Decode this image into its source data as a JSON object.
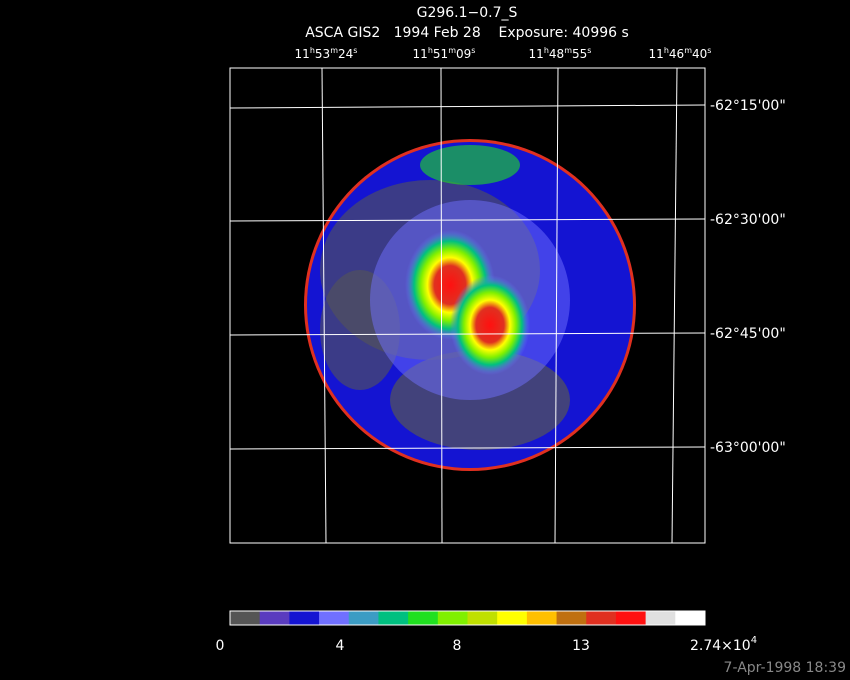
{
  "header": {
    "title": "G296.1−0.7_S",
    "subtitle": "ASCA GIS2   1994 Feb 28    Exposure: 40996 s"
  },
  "ra_labels": [
    [
      "11",
      "h",
      "53",
      "m",
      "24",
      "s"
    ],
    [
      "11",
      "h",
      "51",
      "m",
      "09",
      "s"
    ],
    [
      "11",
      "h",
      "48",
      "m",
      "55",
      "s"
    ],
    [
      "11",
      "h",
      "46",
      "m",
      "40",
      "s"
    ]
  ],
  "dec_labels": [
    "-62°15'00\"",
    "-62°30'00\"",
    "-62°45'00\"",
    "-63°00'00\""
  ],
  "colorbar": {
    "colors": [
      "#555555",
      "#5a3cbf",
      "#1414d2",
      "#7070ff",
      "#3c9cc4",
      "#00c080",
      "#20e020",
      "#80f000",
      "#c0e000",
      "#ffff00",
      "#ffc000",
      "#c07010",
      "#e03020",
      "#ff1010",
      "#e0e0e0",
      "#ffffff"
    ],
    "labels": [
      {
        "text": "0"
      },
      {
        "text": "4"
      },
      {
        "text": "8"
      },
      {
        "text": "13"
      },
      {
        "text": "2.74×10",
        "exp": "4"
      }
    ]
  },
  "timestamp": "7-Apr-1998 18:39"
}
